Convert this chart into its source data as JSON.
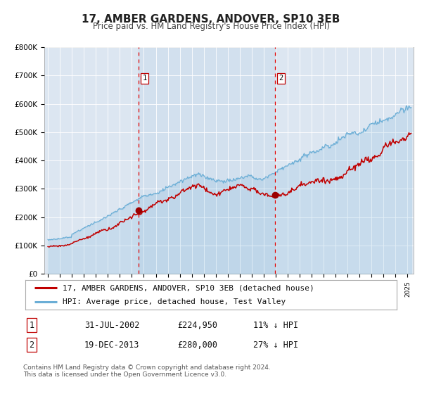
{
  "title": "17, AMBER GARDENS, ANDOVER, SP10 3EB",
  "subtitle": "Price paid vs. HM Land Registry's House Price Index (HPI)",
  "ylim": [
    0,
    800000
  ],
  "yticks": [
    0,
    100000,
    200000,
    300000,
    400000,
    500000,
    600000,
    700000,
    800000
  ],
  "ytick_labels": [
    "£0",
    "£100K",
    "£200K",
    "£300K",
    "£400K",
    "£500K",
    "£600K",
    "£700K",
    "£800K"
  ],
  "xlim_start": 1994.7,
  "xlim_end": 2025.5,
  "hpi_color": "#6baed6",
  "hpi_fill_color": "#c6dbef",
  "price_color": "#c00000",
  "marker_color": "#9b0000",
  "vline_color": "#e00000",
  "shade_color": "#ddeeff",
  "plot_bg_color": "#dce6f1",
  "grid_color": "#ffffff",
  "sale1_x": 2002.578,
  "sale1_y": 224950,
  "sale2_x": 2013.96,
  "sale2_y": 280000,
  "legend_line1": "17, AMBER GARDENS, ANDOVER, SP10 3EB (detached house)",
  "legend_line2": "HPI: Average price, detached house, Test Valley",
  "table_row1_num": "1",
  "table_row1_date": "31-JUL-2002",
  "table_row1_price": "£224,950",
  "table_row1_hpi": "11% ↓ HPI",
  "table_row2_num": "2",
  "table_row2_date": "19-DEC-2013",
  "table_row2_price": "£280,000",
  "table_row2_hpi": "27% ↓ HPI",
  "footer": "Contains HM Land Registry data © Crown copyright and database right 2024.\nThis data is licensed under the Open Government Licence v3.0.",
  "title_fontsize": 11,
  "subtitle_fontsize": 8.5,
  "tick_fontsize": 7.5,
  "legend_fontsize": 8,
  "table_fontsize": 8.5,
  "footer_fontsize": 6.5
}
